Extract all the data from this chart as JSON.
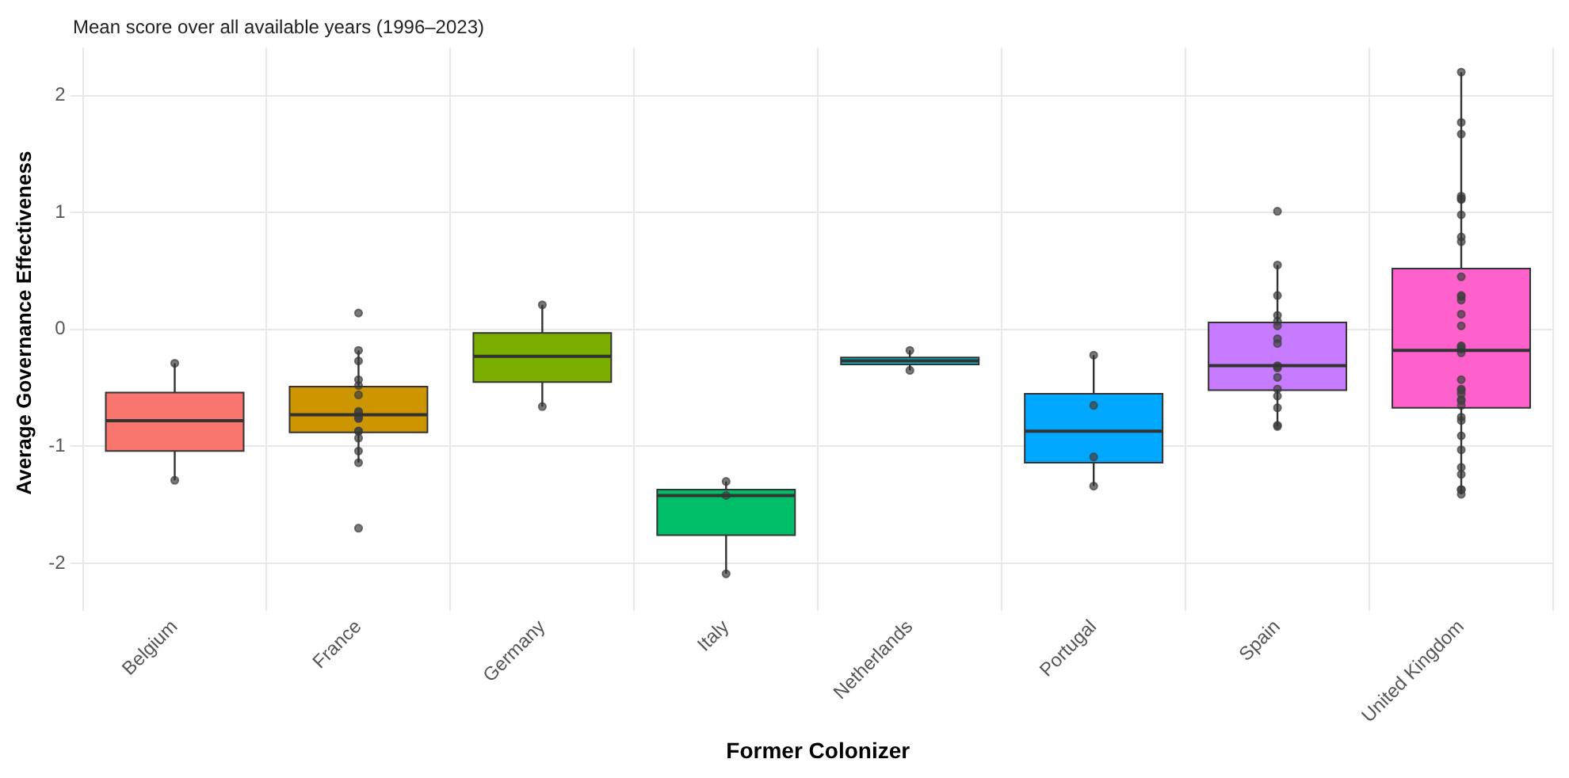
{
  "chart_data": {
    "type": "box",
    "subtitle": "Mean score over all available years (1996–2023)",
    "xlabel": "Former Colonizer",
    "ylabel": "Average Governance Effectiveness",
    "categories": [
      "Belgium",
      "France",
      "Germany",
      "Italy",
      "Netherlands",
      "Portugal",
      "Spain",
      "United Kingdom"
    ],
    "colors": [
      "#f8766d",
      "#cd9600",
      "#7cae00",
      "#00be67",
      "#00bfc4",
      "#00a9ff",
      "#c77cff",
      "#ff61cc"
    ],
    "boxes": [
      {
        "low": -1.29,
        "q1": -1.04,
        "median": -0.78,
        "q3": -0.54,
        "high": -0.29
      },
      {
        "low": -1.14,
        "q1": -0.88,
        "median": -0.73,
        "q3": -0.49,
        "high": -0.18
      },
      {
        "low": -0.66,
        "q1": -0.45,
        "median": -0.23,
        "q3": -0.03,
        "high": 0.21
      },
      {
        "low": -2.09,
        "q1": -1.76,
        "median": -1.42,
        "q3": -1.37,
        "high": -1.3
      },
      {
        "low": -0.35,
        "q1": -0.3,
        "median": -0.27,
        "q3": -0.24,
        "high": -0.18
      },
      {
        "low": -1.34,
        "q1": -1.14,
        "median": -0.87,
        "q3": -0.55,
        "high": -0.22
      },
      {
        "low": -0.83,
        "q1": -0.52,
        "median": -0.31,
        "q3": 0.06,
        "high": 0.55
      },
      {
        "low": -1.41,
        "q1": -0.67,
        "median": -0.18,
        "q3": 0.52,
        "high": 2.2
      }
    ],
    "series": [
      {
        "type": "scatter",
        "color": "#404040",
        "x": [
          "Belgium",
          "Belgium",
          "France",
          "France",
          "France",
          "France",
          "France",
          "France",
          "France",
          "France",
          "France",
          "France",
          "France",
          "France",
          "France",
          "France",
          "France",
          "France",
          "France",
          "Germany",
          "Germany",
          "Italy",
          "Italy",
          "Italy",
          "Netherlands",
          "Netherlands",
          "Portugal",
          "Portugal",
          "Portugal",
          "Portugal",
          "Spain",
          "Spain",
          "Spain",
          "Spain",
          "Spain",
          "Spain",
          "Spain",
          "Spain",
          "Spain",
          "Spain",
          "Spain",
          "Spain",
          "Spain",
          "Spain",
          "Spain",
          "Spain",
          "Spain",
          "United Kingdom",
          "United Kingdom",
          "United Kingdom",
          "United Kingdom",
          "United Kingdom",
          "United Kingdom",
          "United Kingdom",
          "United Kingdom",
          "United Kingdom",
          "United Kingdom",
          "United Kingdom",
          "United Kingdom",
          "United Kingdom",
          "United Kingdom",
          "United Kingdom",
          "United Kingdom",
          "United Kingdom",
          "United Kingdom",
          "United Kingdom",
          "United Kingdom",
          "United Kingdom",
          "United Kingdom",
          "United Kingdom",
          "United Kingdom",
          "United Kingdom",
          "United Kingdom",
          "United Kingdom",
          "United Kingdom",
          "United Kingdom",
          "United Kingdom",
          "United Kingdom",
          "United Kingdom",
          "United Kingdom",
          "United Kingdom",
          "United Kingdom"
        ],
        "values": [
          -0.29,
          -1.29,
          0.14,
          -0.18,
          -0.27,
          -0.43,
          -0.48,
          -0.56,
          -0.7,
          -0.71,
          -0.74,
          -0.76,
          -0.76,
          -0.87,
          -0.87,
          -0.93,
          -1.04,
          -1.14,
          -1.7,
          0.21,
          -0.66,
          -1.3,
          -1.42,
          -2.09,
          -0.18,
          -0.35,
          -0.22,
          -0.65,
          -1.09,
          -1.34,
          1.01,
          0.55,
          0.29,
          0.12,
          0.07,
          0.03,
          -0.08,
          -0.12,
          -0.31,
          -0.32,
          -0.33,
          -0.41,
          -0.51,
          -0.57,
          -0.67,
          -0.82,
          -0.83,
          2.2,
          1.77,
          1.67,
          1.14,
          1.12,
          1.11,
          0.98,
          0.79,
          0.75,
          0.45,
          0.29,
          0.28,
          0.25,
          0.13,
          0.03,
          -0.14,
          -0.15,
          -0.17,
          -0.2,
          -0.43,
          -0.51,
          -0.52,
          -0.55,
          -0.6,
          -0.61,
          -0.65,
          -0.75,
          -0.78,
          -0.91,
          -1.03,
          -1.18,
          -1.24,
          -1.37,
          -1.37,
          -1.41
        ]
      }
    ],
    "ylim": [
      -2.3,
      2.41
    ],
    "yticks": [
      -2,
      -1,
      0,
      1,
      2
    ],
    "grid": true,
    "marker": "circle",
    "legend": false
  }
}
